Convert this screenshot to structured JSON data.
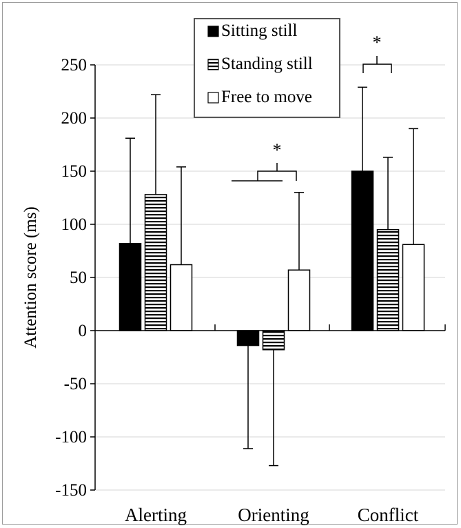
{
  "chart_data": {
    "type": "bar",
    "ylabel": "Attention score (ms)",
    "xlabel": "",
    "ylim": [
      -150,
      250
    ],
    "yticks": [
      250,
      200,
      150,
      100,
      50,
      0,
      -50,
      -100,
      -150
    ],
    "ytick_labels": [
      "250",
      "200",
      "150",
      "100",
      "50",
      "0",
      "-50",
      "-100",
      "-150"
    ],
    "grid": true,
    "legend_position": "top-center",
    "categories": [
      "Alerting",
      "Orienting",
      "Conflict"
    ],
    "series": [
      {
        "name": "Sitting still",
        "pattern": "solid",
        "color": "#000000",
        "values": [
          82,
          -14,
          150
        ],
        "error_upper": [
          181,
          -14,
          229
        ],
        "error_lower": [
          82,
          -111,
          150
        ]
      },
      {
        "name": "Standing still",
        "pattern": "horizontal-stripes",
        "color": "#000000",
        "values": [
          128,
          -18,
          95
        ],
        "error_upper": [
          222,
          -18,
          163
        ],
        "error_lower": [
          128,
          -127,
          95
        ]
      },
      {
        "name": "Free to move",
        "pattern": "none",
        "color": "#ffffff",
        "values": [
          62,
          57,
          81
        ],
        "error_upper": [
          154,
          130,
          190
        ],
        "error_lower": [
          62,
          57,
          81
        ]
      }
    ],
    "annotations": [
      {
        "label": "*",
        "category": "Orienting",
        "y": 150
      },
      {
        "label": "*",
        "category": "Conflict",
        "y": 250
      }
    ]
  }
}
